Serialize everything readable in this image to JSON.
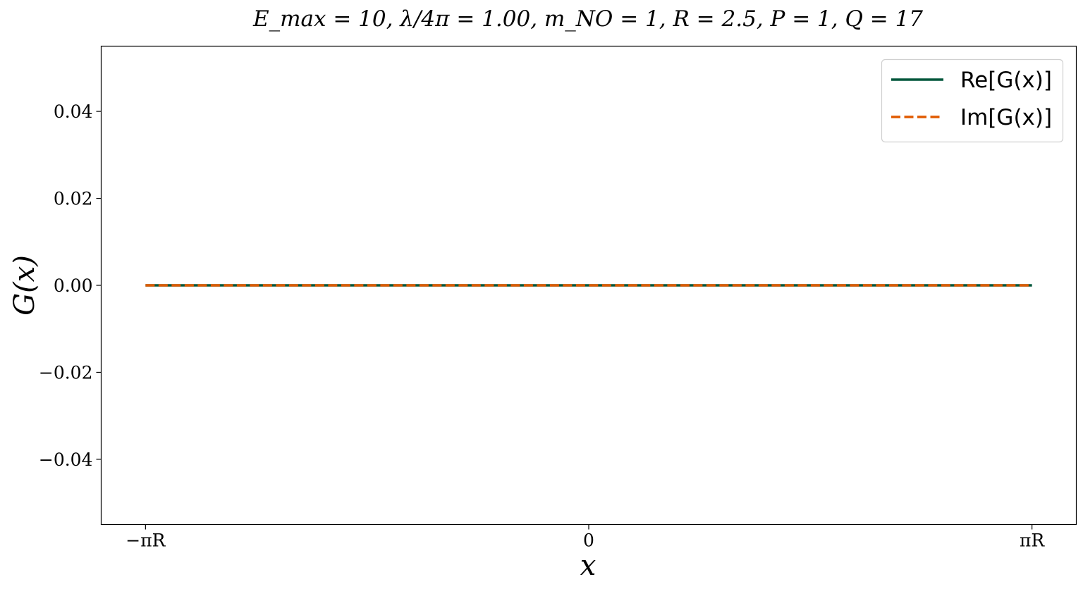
{
  "chart_data": {
    "type": "line",
    "title": "E_max = 10,   λ/4π = 1.00,   m_NO = 1,   R = 2.5,   P = 1,   Q = 17",
    "xlabel": "x",
    "ylabel": "G(x)",
    "x_ticks": [
      "−πR",
      "0",
      "πR"
    ],
    "y_ticks": [
      "0.04",
      "0.02",
      "0.00",
      "−0.02",
      "−0.04"
    ],
    "x_range": [
      -7.853981634,
      7.853981634
    ],
    "ylim": [
      -0.055,
      0.055
    ],
    "grid": false,
    "legend_position": "top-right",
    "x": [
      -7.853981634,
      -3.926990817,
      0,
      3.926990817,
      7.853981634
    ],
    "series": [
      {
        "name": "Re[G(x)]",
        "values": [
          0,
          0,
          0,
          0,
          0
        ],
        "color": "#00573b",
        "style": "solid"
      },
      {
        "name": "Im[G(x)]",
        "values": [
          0,
          0,
          0,
          0,
          0
        ],
        "color": "#e05a00",
        "style": "dashed"
      }
    ]
  }
}
